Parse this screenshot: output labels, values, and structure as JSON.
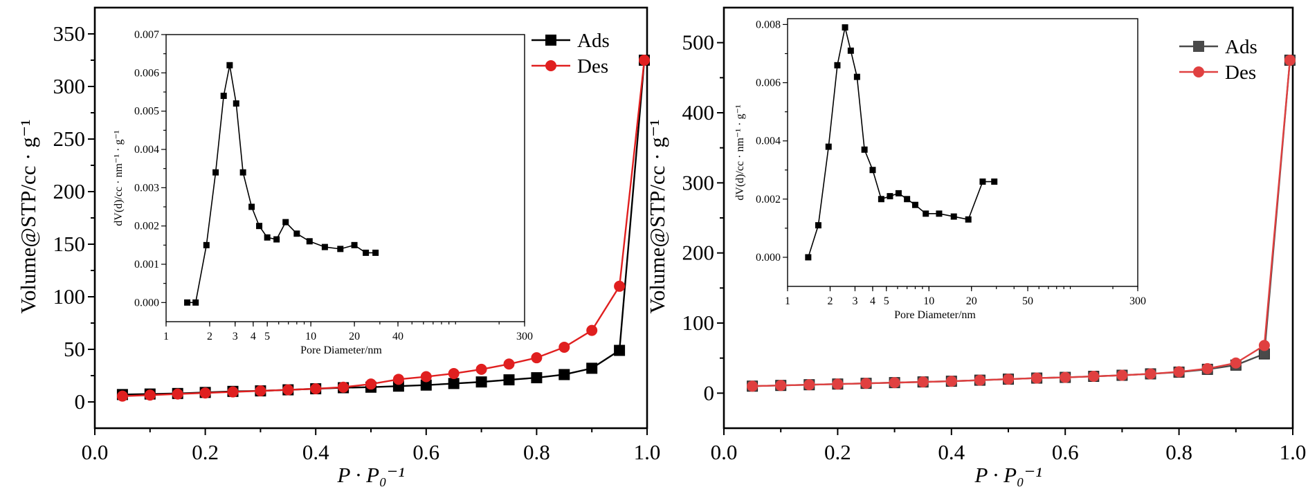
{
  "chart_data": [
    {
      "type": "line",
      "ylabel": "Volume@STP/cc · g⁻¹",
      "xlabel": "P · P₀⁻¹",
      "xlim": [
        0,
        1.0
      ],
      "ylim": [
        -25,
        375
      ],
      "xticks": [
        "0.0",
        "0.2",
        "0.4",
        "0.6",
        "0.8",
        "1.0"
      ],
      "yticks": [
        "0",
        "50",
        "100",
        "150",
        "200",
        "250",
        "300",
        "350"
      ],
      "legend_position": "top-right",
      "series": [
        {
          "name": "Ads",
          "color": "#000000",
          "marker": "square",
          "x": [
            0.05,
            0.1,
            0.15,
            0.2,
            0.25,
            0.3,
            0.35,
            0.4,
            0.45,
            0.5,
            0.55,
            0.6,
            0.65,
            0.7,
            0.75,
            0.8,
            0.85,
            0.9,
            0.95,
            0.995
          ],
          "y": [
            7,
            7.5,
            8,
            9,
            10,
            10.5,
            11.5,
            12.5,
            13.5,
            14,
            15,
            16,
            17.5,
            19,
            21,
            23,
            26,
            32,
            49,
            325
          ]
        },
        {
          "name": "Des",
          "color": "#e01f1f",
          "marker": "circle",
          "x": [
            0.05,
            0.1,
            0.15,
            0.2,
            0.25,
            0.3,
            0.35,
            0.4,
            0.45,
            0.5,
            0.55,
            0.6,
            0.65,
            0.7,
            0.75,
            0.8,
            0.85,
            0.9,
            0.95,
            0.995
          ],
          "y": [
            5.5,
            6.5,
            7.5,
            8.5,
            9.5,
            10.5,
            11.5,
            12.5,
            14,
            17,
            21.5,
            24,
            27,
            31,
            36,
            42,
            52,
            68,
            110,
            325
          ]
        }
      ],
      "inset": {
        "type": "line",
        "xlabel": "Pore Diameter/nm",
        "ylabel": "dV(d)/cc · nm⁻¹ · g⁻¹",
        "xscale": "log",
        "xlim": [
          1,
          300
        ],
        "ylim": [
          -0.0005,
          0.007
        ],
        "xticks": [
          "1",
          "2",
          "3",
          "4",
          "5",
          "10",
          "20",
          "40",
          "300"
        ],
        "yticks": [
          "0.000",
          "0.001",
          "0.002",
          "0.003",
          "0.004",
          "0.005",
          "0.006",
          "0.007"
        ],
        "series": [
          {
            "color": "#000000",
            "marker": "square",
            "x": [
              1.4,
              1.6,
              1.9,
              2.2,
              2.5,
              2.75,
              3.05,
              3.4,
              3.9,
              4.4,
              5.0,
              5.8,
              6.7,
              8.0,
              9.8,
              12.5,
              16,
              20,
              24,
              28
            ],
            "y": [
              0.0,
              0.0,
              0.0015,
              0.0034,
              0.0054,
              0.0062,
              0.0052,
              0.0034,
              0.0025,
              0.002,
              0.0017,
              0.00165,
              0.0021,
              0.0018,
              0.0016,
              0.00145,
              0.0014,
              0.0015,
              0.0013,
              0.0013
            ]
          }
        ]
      }
    },
    {
      "type": "line",
      "ylabel": "Volume@STP/cc · g⁻¹",
      "xlabel": "P · P₀⁻¹",
      "xlim": [
        0,
        1.0
      ],
      "ylim": [
        -50,
        550
      ],
      "xticks": [
        "0.0",
        "0.2",
        "0.4",
        "0.6",
        "0.8",
        "1.0"
      ],
      "yticks": [
        "0",
        "100",
        "200",
        "300",
        "400",
        "500"
      ],
      "legend_position": "top-right",
      "series": [
        {
          "name": "Ads",
          "color": "#4a4a4a",
          "marker": "square",
          "x": [
            0.05,
            0.1,
            0.15,
            0.2,
            0.25,
            0.3,
            0.35,
            0.4,
            0.45,
            0.5,
            0.55,
            0.6,
            0.65,
            0.7,
            0.75,
            0.8,
            0.85,
            0.9,
            0.95,
            0.995
          ],
          "y": [
            10,
            11,
            12,
            13,
            14,
            15,
            16,
            17,
            18.5,
            20,
            21.5,
            22.5,
            24,
            25.5,
            27.5,
            30,
            34,
            40,
            56,
            475
          ]
        },
        {
          "name": "Des",
          "color": "#e04040",
          "marker": "circle",
          "x": [
            0.05,
            0.1,
            0.15,
            0.2,
            0.25,
            0.3,
            0.35,
            0.4,
            0.45,
            0.5,
            0.55,
            0.6,
            0.65,
            0.7,
            0.75,
            0.8,
            0.85,
            0.9,
            0.95,
            0.995
          ],
          "y": [
            10,
            11,
            12,
            13,
            14,
            15,
            16,
            17,
            18.5,
            20,
            21.5,
            22.5,
            24,
            25.5,
            27.5,
            30.5,
            35,
            43,
            68,
            475
          ]
        }
      ],
      "inset": {
        "type": "line",
        "xlabel": "Pore Diameter/nm",
        "ylabel": "dV(d)/cc · nm⁻¹ · g⁻¹",
        "xscale": "log",
        "xlim": [
          1,
          300
        ],
        "ylim": [
          -0.001,
          0.0082
        ],
        "xticks": [
          "1",
          "2",
          "3",
          "4",
          "5",
          "10",
          "20",
          "50",
          "300"
        ],
        "yticks": [
          "0.000",
          "0.002",
          "0.004",
          "0.006",
          "0.008"
        ],
        "series": [
          {
            "color": "#000000",
            "marker": "square",
            "x": [
              1.4,
              1.65,
              1.95,
              2.25,
              2.55,
              2.8,
              3.1,
              3.5,
              4.0,
              4.6,
              5.3,
              6.1,
              7.0,
              8.0,
              9.5,
              11.8,
              15,
              19,
              24,
              29
            ],
            "y": [
              0.0,
              0.0011,
              0.0038,
              0.0066,
              0.0079,
              0.0071,
              0.0062,
              0.0037,
              0.003,
              0.002,
              0.0021,
              0.0022,
              0.002,
              0.0018,
              0.0015,
              0.0015,
              0.0014,
              0.0013,
              0.0026,
              0.0026
            ]
          }
        ]
      }
    }
  ]
}
